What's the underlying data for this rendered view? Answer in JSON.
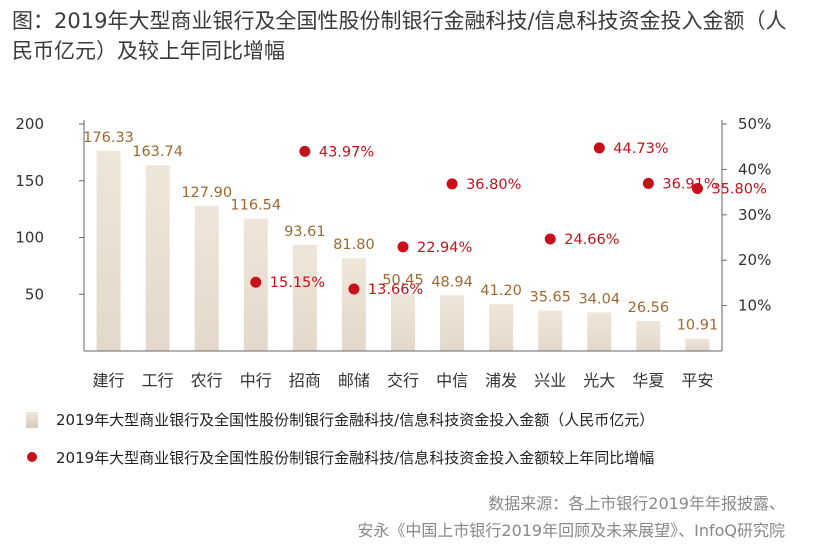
{
  "title": "图：2019年大型商业银行及全国性股份制银行金融科技/信息科技资金投入金额（人民币亿元）及较上年同比增幅",
  "legend": {
    "bar_label": "2019年大型商业银行及全国性股份制银行金融科技/信息科技资金投入金额（人民币亿元）",
    "dot_label": "2019年大型商业银行及全国性股份制银行金融科技/信息科技资金投入金额较上年同比增幅"
  },
  "source": {
    "line1": "数据来源：各上市银行2019年年报披露、",
    "line2": "安永《中国上市银行2019年回顾及未来展望》、InfoQ研究院"
  },
  "colors": {
    "bar": "#e3d8c9",
    "bar_label": "#a0682f",
    "dot": "#c8101a",
    "dot_label": "#c8101a",
    "axis_text": "#333333",
    "axis_line": "#666666"
  },
  "chart_data": {
    "type": "bar",
    "categories": [
      "建行",
      "工行",
      "农行",
      "中行",
      "招商",
      "邮储",
      "交行",
      "中信",
      "浦发",
      "兴业",
      "光大",
      "华夏",
      "平安"
    ],
    "series": [
      {
        "type": "bar",
        "axis": "left",
        "values": [
          176.33,
          163.74,
          127.9,
          116.54,
          93.61,
          81.8,
          50.45,
          48.94,
          41.2,
          35.65,
          34.04,
          26.56,
          10.91
        ],
        "labels": [
          "176.33",
          "163.74",
          "127.90",
          "116.54",
          "93.61",
          "81.80",
          "50.45",
          "48.94",
          "41.20",
          "35.65",
          "34.04",
          "26.56",
          "10.91"
        ]
      },
      {
        "type": "scatter",
        "axis": "right",
        "values": [
          null,
          null,
          null,
          15.15,
          43.97,
          13.66,
          22.94,
          36.8,
          null,
          24.66,
          44.73,
          36.91,
          35.8
        ],
        "labels": [
          null,
          null,
          null,
          "15.15%",
          "43.97%",
          "13.66%",
          "22.94%",
          "36.80%",
          null,
          "24.66%",
          "44.73%",
          "36.91%",
          "35.80%"
        ]
      }
    ],
    "y_left": {
      "range": [
        0,
        200
      ],
      "ticks": [
        50,
        100,
        150,
        200
      ],
      "tick_labels": [
        "50",
        "100",
        "150",
        "200"
      ]
    },
    "y_right": {
      "range": [
        0,
        50
      ],
      "ticks": [
        10,
        20,
        30,
        40,
        50
      ],
      "tick_labels": [
        "10%",
        "20%",
        "30%",
        "40%",
        "50%"
      ]
    },
    "grid": false
  }
}
